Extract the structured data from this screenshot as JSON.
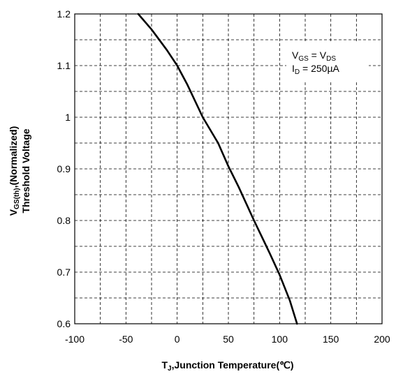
{
  "chart_data": {
    "type": "line",
    "x_ticks": [
      "-100",
      "-50",
      "0",
      "50",
      "100",
      "150",
      "200"
    ],
    "y_ticks": [
      "0.6",
      "0.7",
      "0.8",
      "0.9",
      "1",
      "1.1",
      "1.2"
    ],
    "xlim": [
      -100,
      200
    ],
    "ylim": [
      0.6,
      1.2
    ],
    "grid": true,
    "grid_style": "dashed",
    "xlabel": {
      "main": "T",
      "sub": "J",
      "rest": ",Junction Temperature(℃)"
    },
    "ylabel": {
      "line1_main": "V",
      "line1_sub": "GS(th)",
      "line1_rest": ",(Normalized)",
      "line2": "Threshold Voltage"
    },
    "annotation": {
      "line1": {
        "a": "V",
        "a_sub": "GS",
        "eq": " = V",
        "b_sub": "DS"
      },
      "line2": {
        "a": "I",
        "a_sub": "D",
        "rest": " = 250µA"
      },
      "position": "top-right"
    },
    "series": [
      {
        "color": "#000000",
        "x": [
          -38,
          -25,
          -10,
          0,
          10,
          25,
          40,
          50,
          60,
          75,
          90,
          100,
          110,
          117
        ],
        "y": [
          1.2,
          1.17,
          1.13,
          1.1,
          1.063,
          1.0,
          0.95,
          0.905,
          0.865,
          0.8,
          0.738,
          0.695,
          0.645,
          0.6
        ]
      }
    ]
  }
}
